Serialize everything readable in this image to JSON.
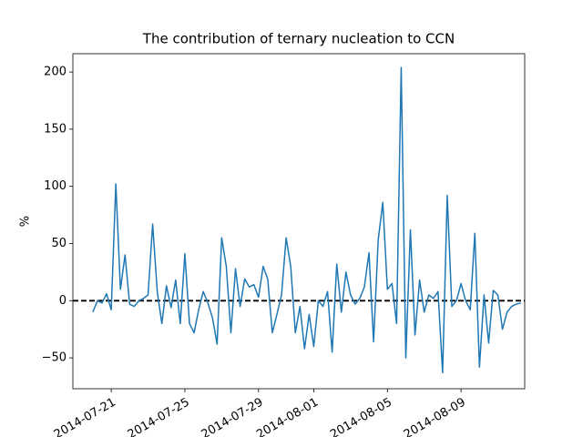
{
  "chart_data": {
    "type": "line",
    "title": "The contribution of ternary nucleation to CCN",
    "y_label": "%",
    "x": [
      "2014-07-20 00:00",
      "2014-07-20 06:00",
      "2014-07-20 12:00",
      "2014-07-20 18:00",
      "2014-07-21 00:00",
      "2014-07-21 06:00",
      "2014-07-21 12:00",
      "2014-07-21 18:00",
      "2014-07-22 00:00",
      "2014-07-22 06:00",
      "2014-07-22 12:00",
      "2014-07-22 18:00",
      "2014-07-23 00:00",
      "2014-07-23 06:00",
      "2014-07-23 12:00",
      "2014-07-23 18:00",
      "2014-07-24 00:00",
      "2014-07-24 06:00",
      "2014-07-24 12:00",
      "2014-07-24 18:00",
      "2014-07-25 00:00",
      "2014-07-25 06:00",
      "2014-07-25 12:00",
      "2014-07-25 18:00",
      "2014-07-26 00:00",
      "2014-07-26 06:00",
      "2014-07-26 12:00",
      "2014-07-26 18:00",
      "2014-07-27 00:00",
      "2014-07-27 06:00",
      "2014-07-27 12:00",
      "2014-07-27 18:00",
      "2014-07-28 00:00",
      "2014-07-28 06:00",
      "2014-07-28 12:00",
      "2014-07-28 18:00",
      "2014-07-29 00:00",
      "2014-07-29 06:00",
      "2014-07-29 12:00",
      "2014-07-29 18:00",
      "2014-07-30 00:00",
      "2014-07-30 06:00",
      "2014-07-30 12:00",
      "2014-07-30 18:00",
      "2014-07-31 00:00",
      "2014-07-31 06:00",
      "2014-07-31 12:00",
      "2014-07-31 18:00",
      "2014-08-01 00:00",
      "2014-08-01 06:00",
      "2014-08-01 12:00",
      "2014-08-01 18:00",
      "2014-08-02 00:00",
      "2014-08-02 06:00",
      "2014-08-02 12:00",
      "2014-08-02 18:00",
      "2014-08-03 00:00",
      "2014-08-03 06:00",
      "2014-08-03 12:00",
      "2014-08-03 18:00",
      "2014-08-04 00:00",
      "2014-08-04 06:00",
      "2014-08-04 12:00",
      "2014-08-04 18:00",
      "2014-08-05 00:00",
      "2014-08-05 06:00",
      "2014-08-05 12:00",
      "2014-08-05 18:00",
      "2014-08-06 00:00",
      "2014-08-06 06:00",
      "2014-08-06 12:00",
      "2014-08-06 18:00",
      "2014-08-07 00:00",
      "2014-08-07 06:00",
      "2014-08-07 12:00",
      "2014-08-07 18:00",
      "2014-08-08 00:00",
      "2014-08-08 06:00",
      "2014-08-08 12:00",
      "2014-08-08 18:00",
      "2014-08-09 00:00",
      "2014-08-09 06:00",
      "2014-08-09 12:00",
      "2014-08-09 18:00",
      "2014-08-10 00:00",
      "2014-08-10 06:00",
      "2014-08-10 12:00",
      "2014-08-10 18:00",
      "2014-08-11 00:00",
      "2014-08-11 06:00",
      "2014-08-11 12:00",
      "2014-08-11 18:00",
      "2014-08-12 00:00",
      "2014-08-12 06:00"
    ],
    "series": [
      {
        "color": "#1f77b4",
        "values": [
          -10,
          0,
          -2,
          6,
          -8,
          102,
          10,
          40,
          -3,
          -5,
          0,
          2,
          5,
          67,
          8,
          -20,
          13,
          -6,
          18,
          -20,
          41,
          -20,
          -28,
          -8,
          8,
          -2,
          -15,
          -38,
          55,
          30,
          -28,
          28,
          -5,
          19,
          12,
          14,
          3,
          30,
          19,
          -28,
          -12,
          5,
          55,
          30,
          -28,
          -5,
          -42,
          -12,
          -40,
          0,
          -5,
          8,
          -45,
          32,
          -10,
          25,
          5,
          -3,
          2,
          12,
          42,
          -36,
          53,
          86,
          10,
          15,
          -20,
          204,
          -50,
          62,
          -30,
          18,
          -10,
          5,
          2,
          8,
          -63,
          92,
          -5,
          0,
          15,
          0,
          -8,
          59,
          -58,
          5,
          -37,
          9,
          5,
          -25,
          -10,
          -5,
          -3,
          -2
        ]
      }
    ],
    "hline": {
      "value": 0,
      "color": "#000000"
    },
    "xlim": [
      "2014-07-18 22:00",
      "2014-08-12 11:00"
    ],
    "xticks": [
      "2014-07-21",
      "2014-07-25",
      "2014-07-29",
      "2014-08-01",
      "2014-08-05",
      "2014-08-09"
    ],
    "ylim": [
      -77,
      216
    ],
    "yticks": [
      {
        "value": -50,
        "label": "−50"
      },
      0,
      50,
      100,
      150,
      200
    ]
  }
}
